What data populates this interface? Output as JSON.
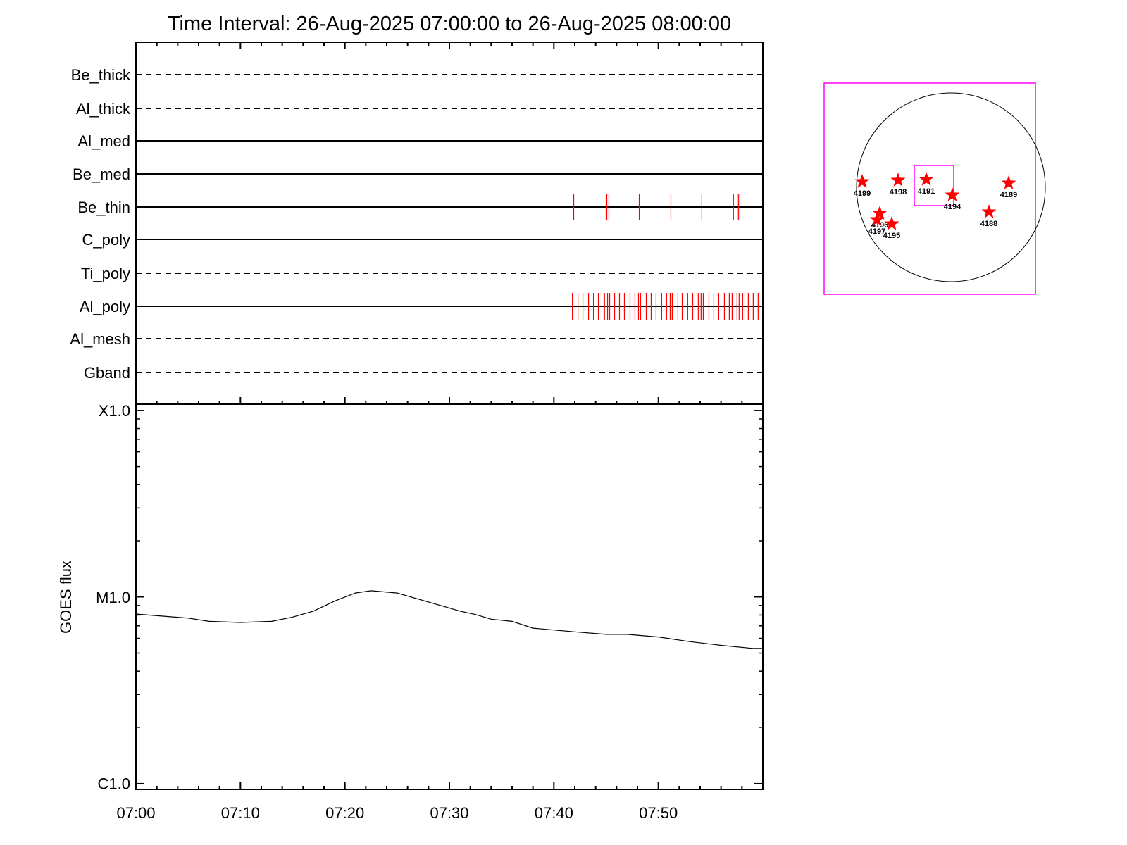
{
  "title": "Time Interval: 26-Aug-2025 07:00:00 to 26-Aug-2025 08:00:00",
  "colors": {
    "event": "#ff0000",
    "box": "#ff00ff",
    "axis": "#000000",
    "star": "#ff0000"
  },
  "chart_data": [
    {
      "type": "event-raster",
      "x_unit": "minutes after 07:00",
      "xlim": [
        0,
        60
      ],
      "x_ticks": [
        "07:00",
        "07:10",
        "07:20",
        "07:30",
        "07:40",
        "07:50"
      ],
      "channels": [
        {
          "name": "Be_thick",
          "line": "dashed",
          "events": []
        },
        {
          "name": "Al_thick",
          "line": "dashed",
          "events": []
        },
        {
          "name": "Al_med",
          "line": "solid",
          "events": []
        },
        {
          "name": "Be_med",
          "line": "solid",
          "events": []
        },
        {
          "name": "Be_thin",
          "line": "solid",
          "events": [
            41.9,
            45.0,
            45.07,
            45.27,
            48.17,
            51.2,
            54.16,
            57.19,
            57.66,
            57.8
          ]
        },
        {
          "name": "C_poly",
          "line": "solid",
          "events": []
        },
        {
          "name": "Ti_poly",
          "line": "dashed",
          "events": []
        },
        {
          "name": "Al_poly",
          "line": "solid",
          "events": [
            41.77,
            42.31,
            42.78,
            43.32,
            43.79,
            44.26,
            44.8,
            44.85,
            45.14,
            45.34,
            45.81,
            46.28,
            46.75,
            47.29,
            47.76,
            48.1,
            48.3,
            48.84,
            49.31,
            49.78,
            50.32,
            50.79,
            51.13,
            51.33,
            51.87,
            52.28,
            52.81,
            53.29,
            53.82,
            54.09,
            54.3,
            54.84,
            55.31,
            55.78,
            56.32,
            56.79,
            57.06,
            57.12,
            57.53,
            57.73,
            58.07,
            58.61,
            59.08,
            59.55
          ]
        },
        {
          "name": "Al_mesh",
          "line": "dashed",
          "events": []
        },
        {
          "name": "Gband",
          "line": "dashed",
          "events": []
        }
      ]
    },
    {
      "type": "line",
      "ylabel": "GOES flux",
      "yscale": "log",
      "ylim": [
        9.3e-07,
        0.000108
      ],
      "y_ticks": [
        {
          "label": "X1.0",
          "value": 0.0001
        },
        {
          "label": "M1.0",
          "value": 1e-05
        },
        {
          "label": "C1.0",
          "value": 1e-06
        }
      ],
      "x_ticks": [
        "07:00",
        "07:10",
        "07:20",
        "07:30",
        "07:40",
        "07:50"
      ],
      "xlim": [
        0,
        60
      ],
      "x": [
        0,
        5,
        7,
        10,
        13,
        15,
        17,
        19,
        21,
        22.5,
        25,
        28,
        31,
        32.5,
        34,
        36,
        38,
        42,
        45,
        47,
        50,
        53,
        56,
        59,
        60
      ],
      "y": [
        8.1e-06,
        7.7e-06,
        7.4e-06,
        7.3e-06,
        7.4e-06,
        7.8e-06,
        8.4e-06,
        9.5e-06,
        1.05e-05,
        1.08e-05,
        1.05e-05,
        9.4e-06,
        8.4e-06,
        8.05e-06,
        7.6e-06,
        7.4e-06,
        6.8e-06,
        6.5e-06,
        6.3e-06,
        6.3e-06,
        6.1e-06,
        5.76e-06,
        5.5e-06,
        5.3e-06,
        5.3e-06
      ]
    }
  ],
  "sun_map": {
    "regions": [
      "4199",
      "4198",
      "4191",
      "4194",
      "4189",
      "4196",
      "4197",
      "4195",
      "4188"
    ]
  }
}
